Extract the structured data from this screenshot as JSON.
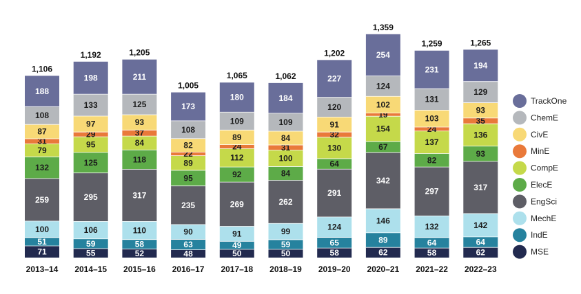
{
  "chart_data": {
    "type": "bar",
    "stacked": true,
    "title": "",
    "xlabel": "",
    "ylabel": "",
    "ylim": [
      0,
      1400
    ],
    "grid": false,
    "legend_position": "right",
    "categories": [
      "2013–14",
      "2014–15",
      "2015–16",
      "2016–17",
      "2017–18",
      "2018–19",
      "2019–20",
      "2020–21",
      "2021–22",
      "2022–23"
    ],
    "totals": [
      "1,106",
      "1,192",
      "1,205",
      "1,005",
      "1,065",
      "1,062",
      "1,202",
      "1,359",
      "1,259",
      "1,265"
    ],
    "series": [
      {
        "name": "MSE",
        "color": "#222a4f",
        "text": "light",
        "values": [
          71,
          55,
          52,
          48,
          50,
          50,
          58,
          62,
          58,
          62
        ]
      },
      {
        "name": "IndE",
        "color": "#26829e",
        "text": "light",
        "values": [
          51,
          59,
          58,
          63,
          49,
          59,
          65,
          89,
          64,
          64
        ]
      },
      {
        "name": "MechE",
        "color": "#ade0ec",
        "text": "dark",
        "values": [
          100,
          106,
          110,
          90,
          91,
          99,
          124,
          146,
          132,
          142
        ]
      },
      {
        "name": "EngSci",
        "color": "#5e5e66",
        "text": "light",
        "values": [
          259,
          295,
          317,
          235,
          269,
          262,
          291,
          342,
          297,
          317
        ]
      },
      {
        "name": "ElecE",
        "color": "#5dab48",
        "text": "dark",
        "values": [
          132,
          125,
          118,
          95,
          92,
          84,
          64,
          67,
          82,
          93
        ]
      },
      {
        "name": "CompE",
        "color": "#c5d94a",
        "text": "dark",
        "values": [
          79,
          95,
          84,
          89,
          112,
          100,
          130,
          154,
          137,
          136
        ]
      },
      {
        "name": "MinE",
        "color": "#e9793a",
        "text": "dark",
        "values": [
          31,
          29,
          37,
          22,
          24,
          31,
          32,
          19,
          24,
          35
        ]
      },
      {
        "name": "CivE",
        "color": "#f8d976",
        "text": "dark",
        "values": [
          87,
          97,
          93,
          82,
          89,
          84,
          91,
          102,
          103,
          93
        ]
      },
      {
        "name": "ChemE",
        "color": "#b5b8bc",
        "text": "dark",
        "values": [
          108,
          133,
          125,
          108,
          109,
          109,
          120,
          124,
          131,
          129
        ]
      },
      {
        "name": "TrackOne",
        "color": "#696e9a",
        "text": "light",
        "values": [
          188,
          198,
          211,
          173,
          180,
          184,
          227,
          254,
          231,
          194
        ]
      }
    ],
    "legend_order": [
      "TrackOne",
      "ChemE",
      "CivE",
      "MinE",
      "CompE",
      "ElecE",
      "EngSci",
      "MechE",
      "IndE",
      "MSE"
    ]
  }
}
